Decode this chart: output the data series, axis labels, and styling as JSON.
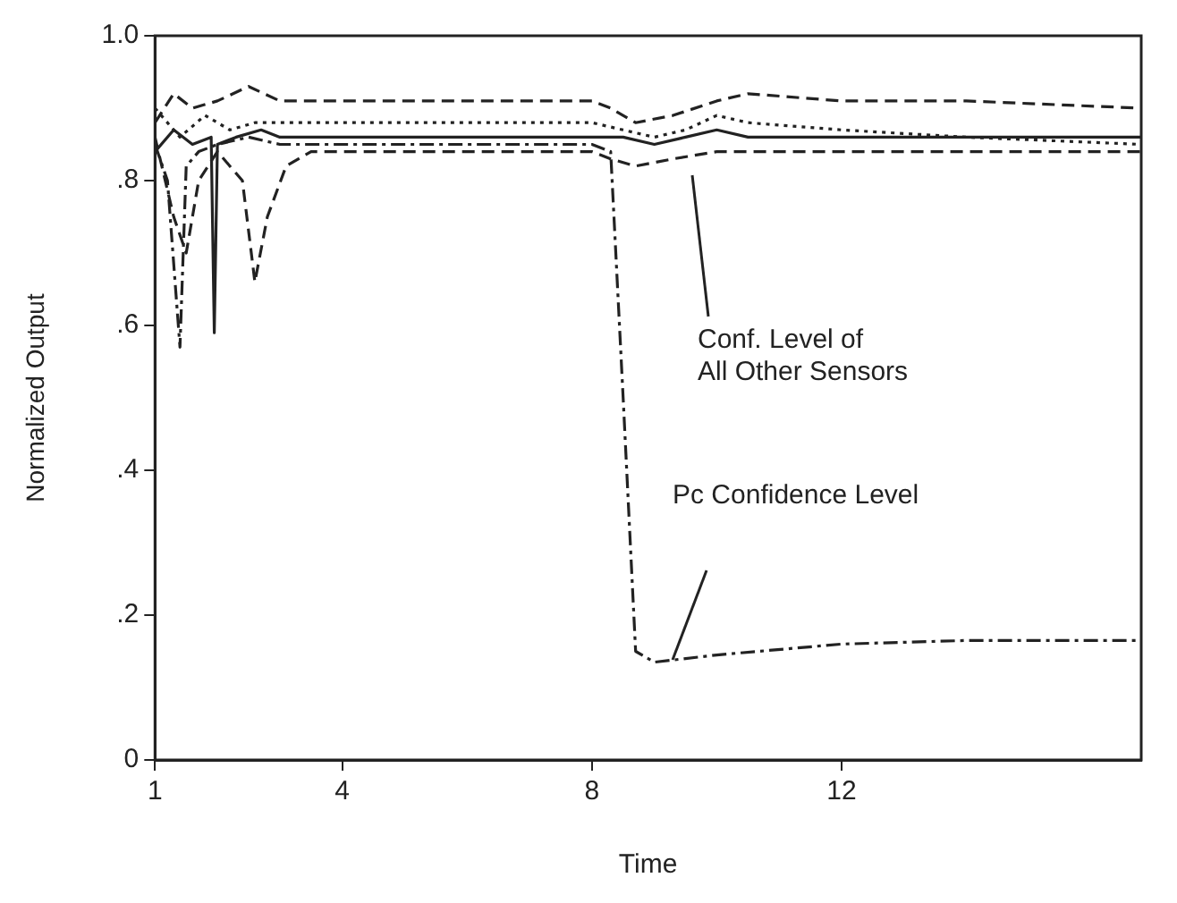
{
  "chart_data": {
    "type": "line",
    "xlabel": "Time",
    "ylabel": "Normalized Output",
    "xlim": [
      1,
      16.8
    ],
    "xticks": [
      1,
      4,
      8,
      12
    ],
    "ylim": [
      0,
      1.0
    ],
    "yticks": [
      0,
      {
        "value": 0.2,
        "label": ".2"
      },
      {
        "value": 0.4,
        "label": ".4"
      },
      {
        "value": 0.6,
        "label": ".6"
      },
      {
        "value": 0.8,
        "label": ".8"
      },
      {
        "value": 1.0,
        "label": "1.0"
      }
    ],
    "grid": false,
    "legend": false,
    "marker": "none",
    "series": [
      {
        "color": "#222222",
        "line_style": "dashdot",
        "x": [
          1,
          1.2,
          1.4,
          1.5,
          1.7,
          2,
          2.5,
          3,
          3.5,
          4,
          6,
          8,
          8.3,
          8.5,
          8.7,
          9,
          10,
          12,
          14,
          16.8
        ],
        "values": [
          0.85,
          0.8,
          0.57,
          0.82,
          0.84,
          0.85,
          0.86,
          0.85,
          0.85,
          0.85,
          0.85,
          0.85,
          0.84,
          0.5,
          0.15,
          0.135,
          0.145,
          0.16,
          0.165,
          0.165
        ]
      },
      {
        "color": "#222222",
        "line_style": "dashed",
        "x": [
          1,
          1.3,
          1.6,
          2,
          2.5,
          3,
          4,
          6,
          8,
          8.3,
          8.7,
          9.3,
          10,
          10.5,
          12,
          14,
          16.8
        ],
        "values": [
          0.88,
          0.92,
          0.9,
          0.91,
          0.93,
          0.91,
          0.91,
          0.91,
          0.91,
          0.9,
          0.88,
          0.89,
          0.91,
          0.92,
          0.91,
          0.91,
          0.9
        ]
      },
      {
        "color": "#222222",
        "line_style": "solid",
        "x": [
          1,
          1.3,
          1.6,
          1.9,
          1.95,
          2.0,
          2.3,
          2.7,
          3,
          4,
          6,
          8,
          8.5,
          9,
          9.5,
          10,
          10.5,
          12,
          14,
          16.8
        ],
        "values": [
          0.84,
          0.87,
          0.85,
          0.86,
          0.59,
          0.85,
          0.86,
          0.87,
          0.86,
          0.86,
          0.86,
          0.86,
          0.86,
          0.85,
          0.86,
          0.87,
          0.86,
          0.86,
          0.86,
          0.86
        ]
      },
      {
        "color": "#222222",
        "line_style": "dashed",
        "x": [
          1,
          1.3,
          1.5,
          1.7,
          2,
          2.4,
          2.6,
          2.8,
          3.1,
          3.5,
          4,
          6,
          8,
          8.3,
          8.7,
          9.3,
          10,
          12,
          14,
          16.8
        ],
        "values": [
          0.86,
          0.75,
          0.7,
          0.8,
          0.84,
          0.8,
          0.66,
          0.75,
          0.82,
          0.84,
          0.84,
          0.84,
          0.84,
          0.83,
          0.82,
          0.83,
          0.84,
          0.84,
          0.84,
          0.84
        ]
      },
      {
        "color": "#222222",
        "line_style": "dotted",
        "x": [
          1,
          1.4,
          1.8,
          2.2,
          2.6,
          3,
          4,
          6,
          8,
          8.5,
          9,
          9.5,
          10,
          10.5,
          12,
          14,
          16.8
        ],
        "values": [
          0.9,
          0.86,
          0.89,
          0.87,
          0.88,
          0.88,
          0.88,
          0.88,
          0.88,
          0.87,
          0.86,
          0.87,
          0.89,
          0.88,
          0.87,
          0.86,
          0.85
        ]
      }
    ],
    "annotations": [
      "Conf. Level of\nAll Other Sensors",
      "Pc Confidence Level"
    ]
  }
}
